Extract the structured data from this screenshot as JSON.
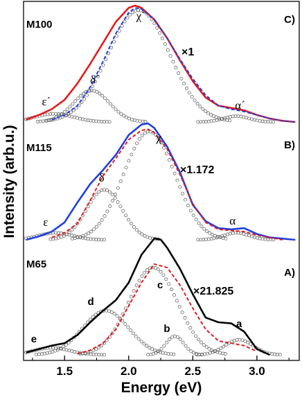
{
  "chart_data": {
    "type": "line",
    "xlabel": "Energy (eV)",
    "ylabel": "Intensity (arb.u.)",
    "xlim": [
      1.18,
      3.33
    ],
    "x_ticks": [
      "1.5",
      "2.0",
      "2.5",
      "3.0"
    ],
    "x_tick_values": [
      1.5,
      2.0,
      2.5,
      3.0
    ],
    "grid": false,
    "panels": [
      {
        "sample": "M100",
        "panel_label": "C)",
        "scale_factor": "×1",
        "measured_color": "#e41a1c",
        "fit_color": "#1f3fe0",
        "measured": {
          "x": [
            1.2,
            1.3,
            1.4,
            1.5,
            1.6,
            1.7,
            1.8,
            1.9,
            2.0,
            2.05,
            2.1,
            2.2,
            2.3,
            2.4,
            2.5,
            2.6,
            2.7,
            2.8,
            2.9,
            3.0,
            3.1,
            3.2,
            3.3
          ],
          "y": [
            0.02,
            0.06,
            0.11,
            0.19,
            0.33,
            0.5,
            0.68,
            0.86,
            0.98,
            1.0,
            0.98,
            0.88,
            0.72,
            0.53,
            0.35,
            0.21,
            0.14,
            0.12,
            0.1,
            0.06,
            0.03,
            0.01,
            0.0
          ]
        },
        "fit": {
          "x": [
            1.4,
            1.5,
            1.6,
            1.7,
            1.8,
            1.9,
            2.0,
            2.05,
            2.1,
            2.2,
            2.3,
            2.4,
            2.5,
            2.6,
            2.7,
            2.8,
            2.9,
            3.0,
            3.1,
            3.2,
            3.3
          ],
          "y": [
            0.02,
            0.06,
            0.14,
            0.3,
            0.52,
            0.76,
            0.94,
            0.98,
            0.97,
            0.88,
            0.72,
            0.54,
            0.37,
            0.23,
            0.14,
            0.11,
            0.09,
            0.06,
            0.03,
            0.01,
            0.0
          ]
        },
        "components": [
          {
            "label": "ε´",
            "center": 1.42,
            "height": 0.07,
            "width": 0.15
          },
          {
            "label": "δ´",
            "center": 1.71,
            "height": 0.27,
            "width": 0.14
          },
          {
            "label": "χ´",
            "center": 2.08,
            "height": 0.96,
            "width": 0.24
          },
          {
            "label": "α´",
            "center": 2.84,
            "height": 0.05,
            "width": 0.1
          }
        ]
      },
      {
        "sample": "M115",
        "panel_label": "B)",
        "scale_factor": "×1.172",
        "measured_color": "#1f3fe0",
        "fit_color": "#e41a1c",
        "measured": {
          "x": [
            1.2,
            1.3,
            1.4,
            1.5,
            1.6,
            1.7,
            1.8,
            1.9,
            2.0,
            2.1,
            2.15,
            2.2,
            2.3,
            2.4,
            2.5,
            2.6,
            2.7,
            2.8,
            2.9,
            3.0,
            3.1,
            3.2,
            3.3
          ],
          "y": [
            0.0,
            0.03,
            0.07,
            0.15,
            0.32,
            0.48,
            0.6,
            0.73,
            0.9,
            0.99,
            1.0,
            0.96,
            0.8,
            0.58,
            0.3,
            0.16,
            0.1,
            0.09,
            0.1,
            0.05,
            0.02,
            0.01,
            0.0
          ]
        },
        "fit": {
          "x": [
            1.4,
            1.5,
            1.6,
            1.7,
            1.8,
            1.9,
            2.0,
            2.1,
            2.15,
            2.2,
            2.3,
            2.4,
            2.5,
            2.6,
            2.7,
            2.8,
            2.9,
            3.0,
            3.1,
            3.2
          ],
          "y": [
            0.02,
            0.06,
            0.14,
            0.34,
            0.55,
            0.7,
            0.86,
            0.94,
            0.95,
            0.92,
            0.78,
            0.56,
            0.31,
            0.15,
            0.09,
            0.08,
            0.07,
            0.04,
            0.02,
            0.0
          ]
        },
        "components": [
          {
            "label": "ε",
            "center": 1.43,
            "height": 0.06,
            "width": 0.13
          },
          {
            "label": "δ",
            "center": 1.81,
            "height": 0.43,
            "width": 0.14
          },
          {
            "label": "χ",
            "center": 2.16,
            "height": 0.93,
            "width": 0.2
          },
          {
            "label": "α",
            "center": 2.84,
            "height": 0.06,
            "width": 0.1
          }
        ]
      },
      {
        "sample": "M65",
        "panel_label": "A)",
        "scale_factor": "×21.825",
        "measured_color": "#000000",
        "fit_color": "#e41a1c",
        "measured": {
          "x": [
            1.2,
            1.3,
            1.4,
            1.5,
            1.6,
            1.7,
            1.8,
            1.9,
            2.0,
            2.1,
            2.2,
            2.25,
            2.3,
            2.4,
            2.5,
            2.6,
            2.7,
            2.8,
            2.9,
            3.0,
            3.1
          ],
          "y": [
            0.02,
            0.05,
            0.08,
            0.1,
            0.17,
            0.28,
            0.38,
            0.47,
            0.62,
            0.86,
            1.0,
            0.99,
            0.92,
            0.74,
            0.52,
            0.32,
            0.28,
            0.27,
            0.2,
            0.05,
            0.0
          ]
        },
        "fit": {
          "x": [
            1.6,
            1.7,
            1.8,
            1.9,
            2.0,
            2.1,
            2.2,
            2.3,
            2.4,
            2.5,
            2.6,
            2.7,
            2.8,
            2.9,
            3.0
          ],
          "y": [
            0.01,
            0.04,
            0.1,
            0.22,
            0.42,
            0.62,
            0.78,
            0.75,
            0.6,
            0.4,
            0.22,
            0.12,
            0.1,
            0.08,
            0.03
          ]
        },
        "components": [
          {
            "label": "e",
            "center": 1.4,
            "height": 0.06,
            "width": 0.14
          },
          {
            "label": "d",
            "center": 1.82,
            "height": 0.38,
            "width": 0.18
          },
          {
            "label": "c",
            "center": 2.19,
            "height": 0.75,
            "width": 0.19
          },
          {
            "label": "b",
            "center": 2.36,
            "height": 0.16,
            "width": 0.07
          },
          {
            "label": "a",
            "center": 2.86,
            "height": 0.13,
            "width": 0.11
          }
        ]
      }
    ]
  }
}
